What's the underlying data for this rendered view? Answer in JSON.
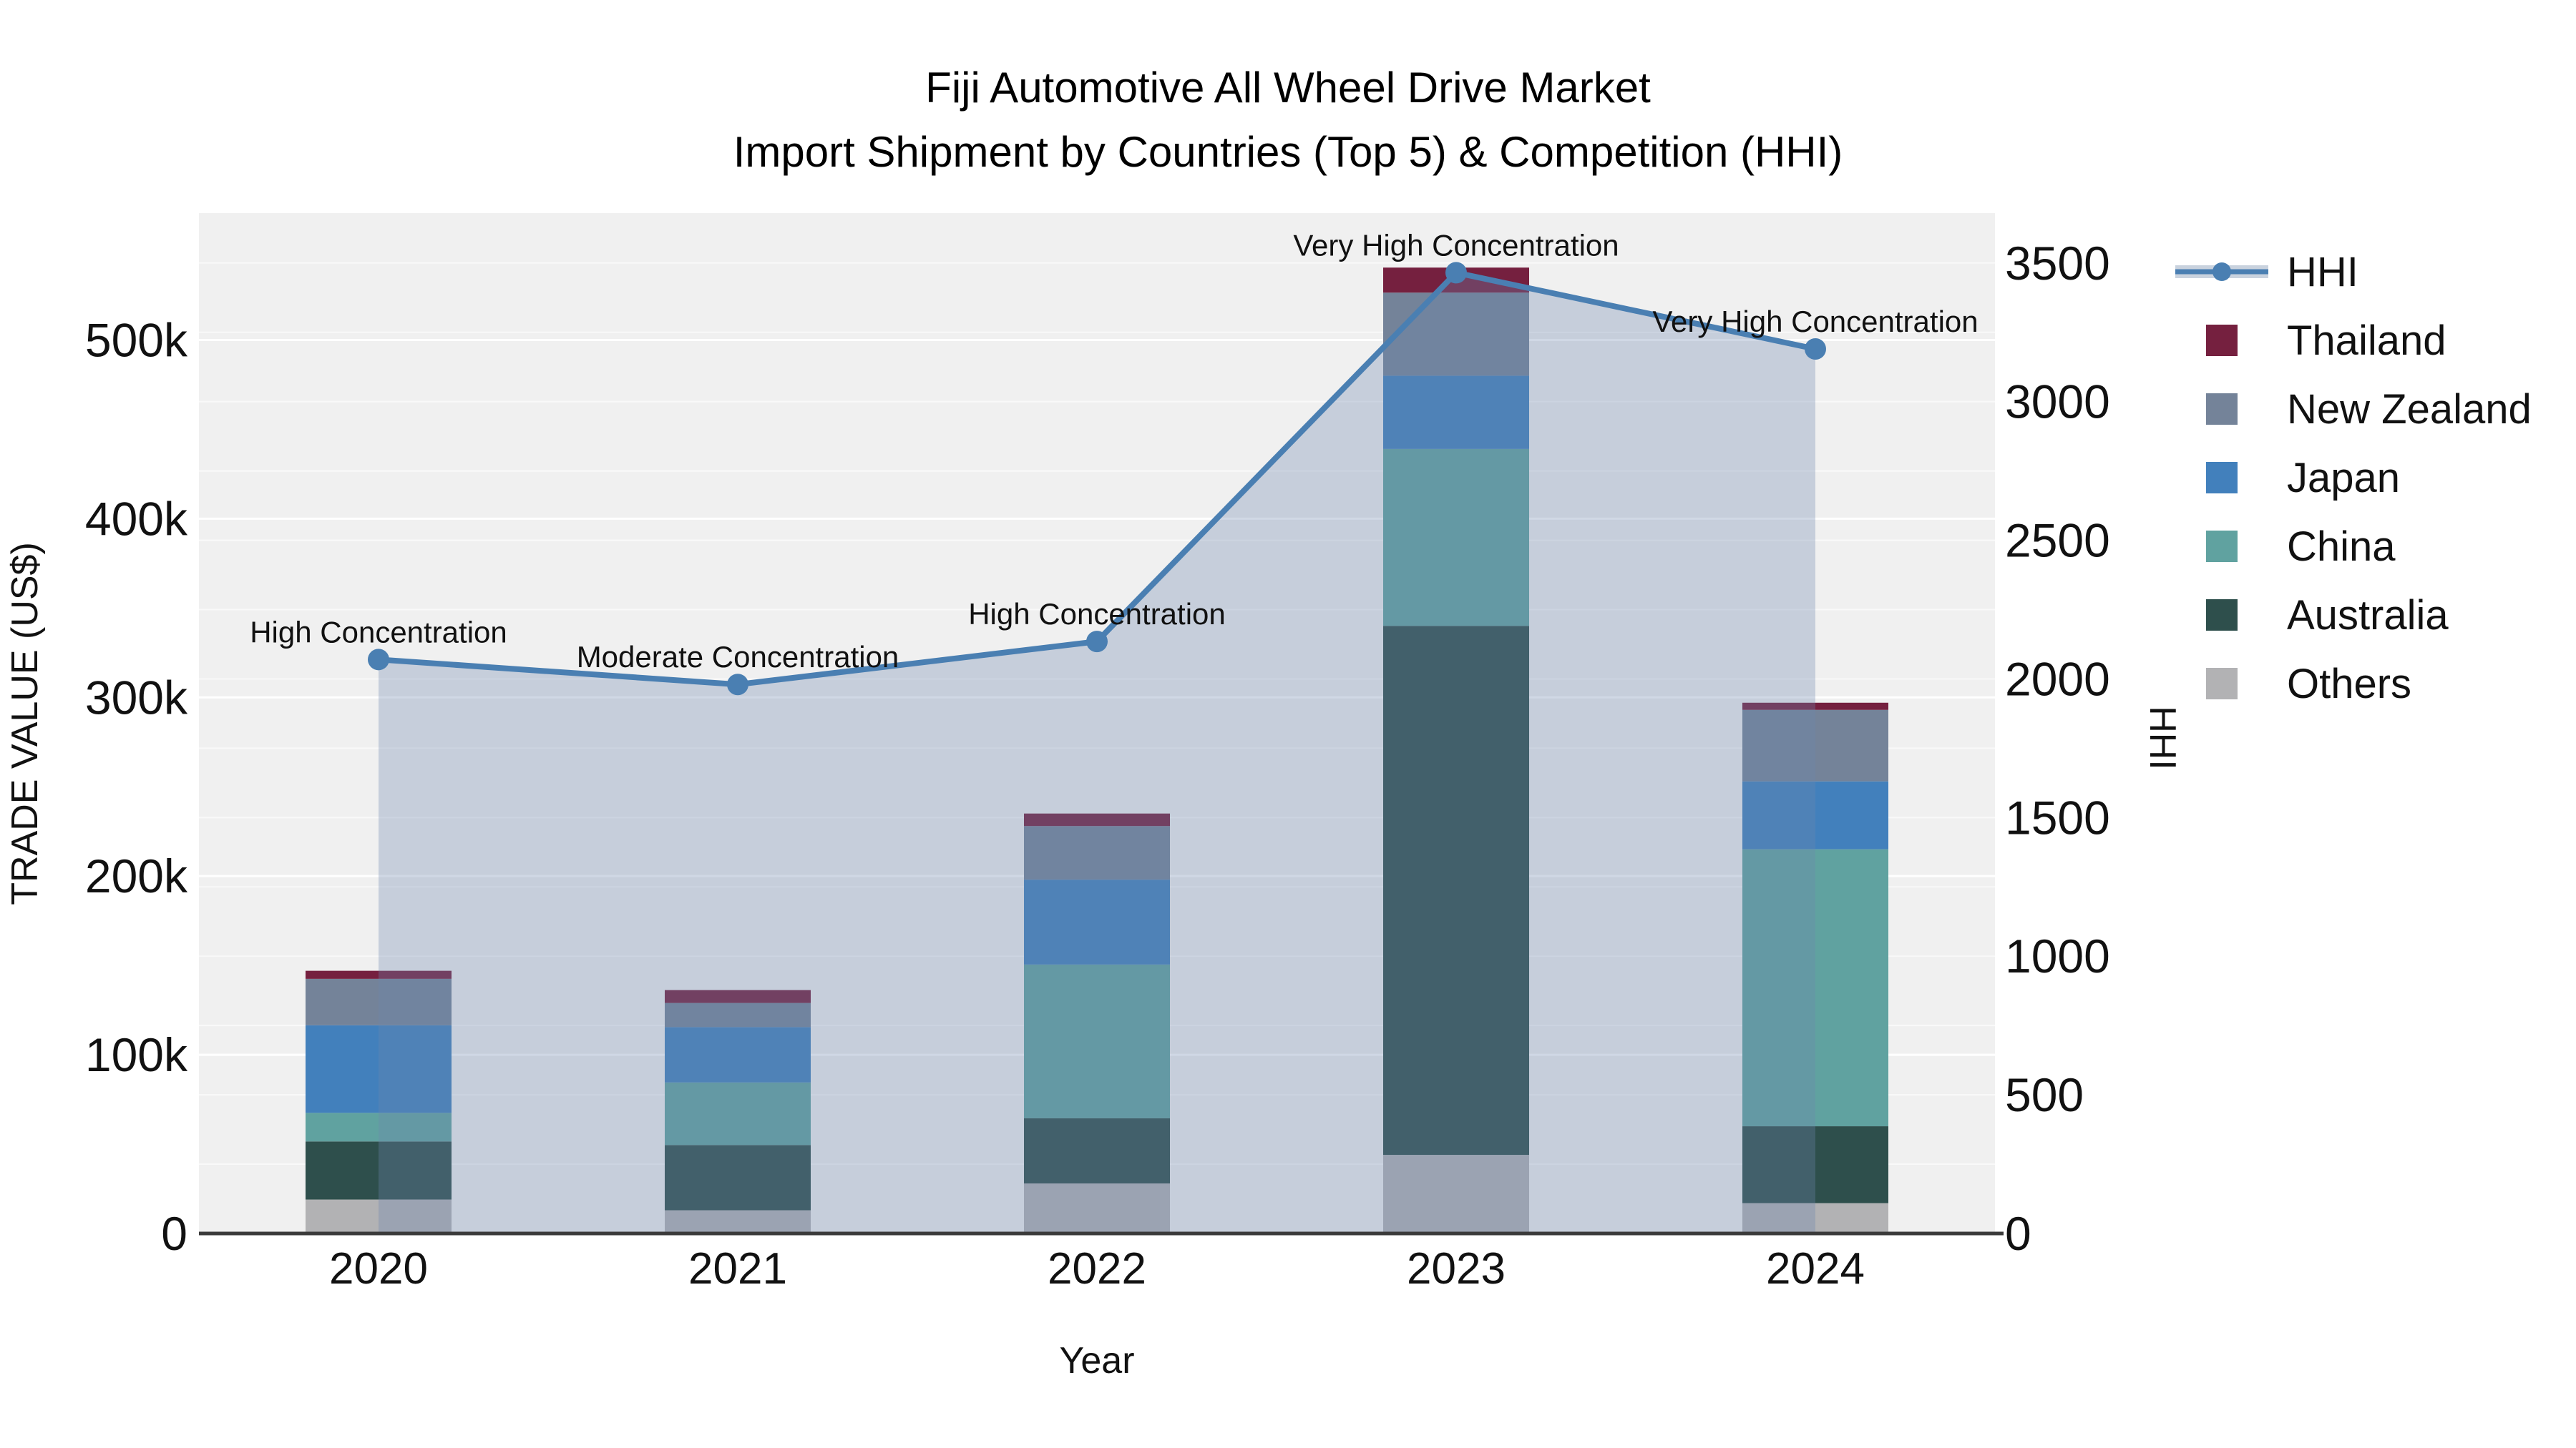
{
  "title": {
    "line1": "Fiji Automotive All Wheel Drive Market",
    "line2": "Import Shipment by Countries (Top 5) & Competition (HHI)"
  },
  "chart_data": {
    "type": "bar+line",
    "description": "Stacked bars = import trade value by country (left axis, US$); line = HHI competition index (right axis)",
    "categories": [
      "2020",
      "2021",
      "2022",
      "2023",
      "2024"
    ],
    "bar_series": [
      {
        "name": "Thailand",
        "color": "#75203f",
        "values": [
          4500,
          7200,
          7000,
          14000,
          4000
        ]
      },
      {
        "name": "New Zealand",
        "color": "#748399",
        "values": [
          26000,
          13500,
          30000,
          46500,
          40000
        ]
      },
      {
        "name": "Japan",
        "color": "#4280bc",
        "values": [
          49000,
          31000,
          47500,
          41000,
          38000
        ]
      },
      {
        "name": "China",
        "color": "#60a2a0",
        "values": [
          16000,
          35000,
          86000,
          99000,
          155000
        ]
      },
      {
        "name": "Australia",
        "color": "#2e4f4c",
        "values": [
          32500,
          36500,
          36500,
          296000,
          43000
        ]
      },
      {
        "name": "Others",
        "color": "#b2b2b4",
        "values": [
          19000,
          13000,
          28000,
          44000,
          17000
        ]
      }
    ],
    "stack_order": [
      "Others",
      "Australia",
      "China",
      "Japan",
      "New Zealand",
      "Thailand"
    ],
    "line_series": {
      "name": "HHI",
      "color": "#4a7fb2",
      "fill": "rgba(110,133,173,0.32)",
      "values": [
        2070,
        1980,
        2135,
        3465,
        3190
      ]
    },
    "annotations": [
      "High Concentration",
      "Moderate Concentration",
      "High Concentration",
      "Very High Concentration",
      "Very High Concentration"
    ],
    "axes": {
      "x": {
        "title": "Year"
      },
      "y_left": {
        "title": "TRADE VALUE (US$)",
        "max": 571000,
        "ticks": [
          {
            "value": 0,
            "label": "0"
          },
          {
            "value": 100000,
            "label": "100k"
          },
          {
            "value": 200000,
            "label": "200k"
          },
          {
            "value": 300000,
            "label": "300k"
          },
          {
            "value": 400000,
            "label": "400k"
          },
          {
            "value": 500000,
            "label": "500k"
          }
        ]
      },
      "y_right": {
        "title": "HHI",
        "max": 3680,
        "grid_step": 250,
        "ticks": [
          {
            "value": 0,
            "label": "0"
          },
          {
            "value": 500,
            "label": "500"
          },
          {
            "value": 1000,
            "label": "1000"
          },
          {
            "value": 1500,
            "label": "1500"
          },
          {
            "value": 2000,
            "label": "2000"
          },
          {
            "value": 2500,
            "label": "2500"
          },
          {
            "value": 3000,
            "label": "3000"
          },
          {
            "value": 3500,
            "label": "3500"
          }
        ]
      }
    },
    "plot_bg": "#f0f0f0",
    "grid_on": true,
    "legend_position": "right"
  },
  "legend": {
    "items": [
      {
        "label": "HHI",
        "type": "line",
        "color": "#4a7fb2",
        "band": "#c9d2de"
      },
      {
        "label": "Thailand",
        "type": "swatch",
        "color": "#75203f"
      },
      {
        "label": "New Zealand",
        "type": "swatch",
        "color": "#748399"
      },
      {
        "label": "Japan",
        "type": "swatch",
        "color": "#4280bc"
      },
      {
        "label": "China",
        "type": "swatch",
        "color": "#60a2a0"
      },
      {
        "label": "Australia",
        "type": "swatch",
        "color": "#2e4f4c"
      },
      {
        "label": "Others",
        "type": "swatch",
        "color": "#b2b2b4"
      }
    ]
  }
}
